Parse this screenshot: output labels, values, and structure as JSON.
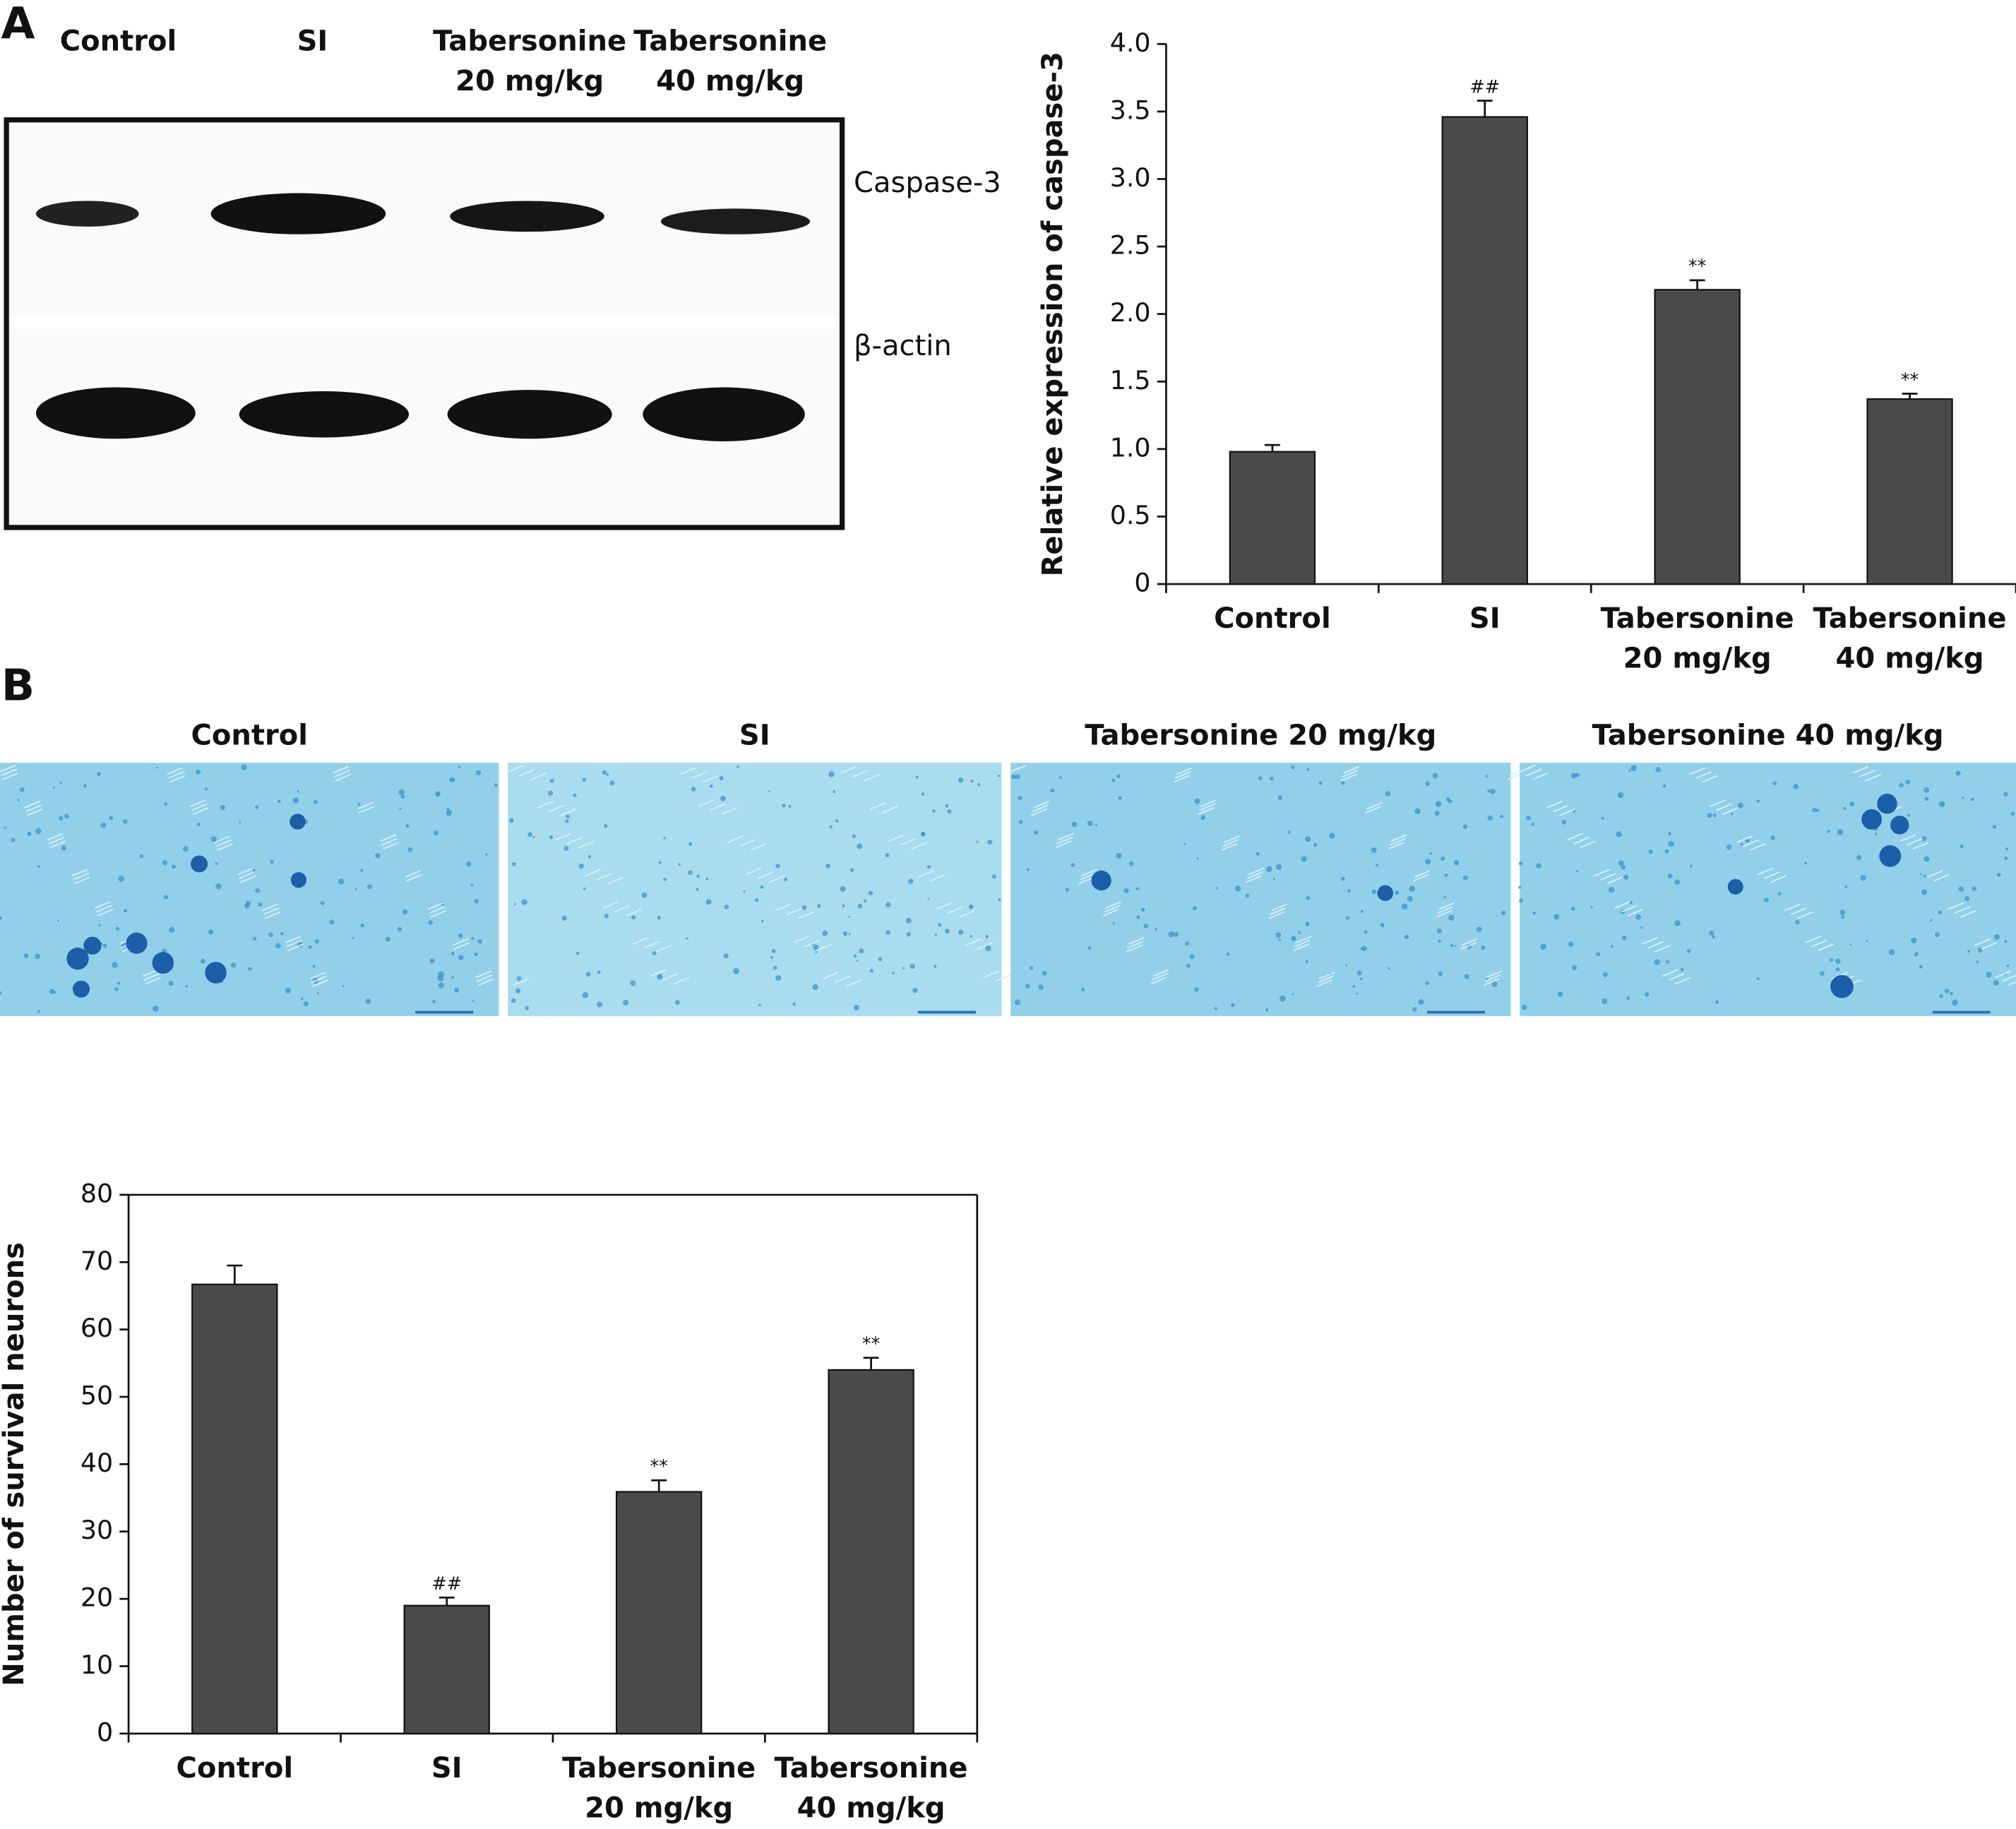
{
  "panel_labels": [
    "A",
    "B"
  ],
  "blot": {
    "lanes": [
      "Control",
      "SI",
      "Tabersonine 20 mg/kg",
      "Tabersonine 40 mg/kg"
    ],
    "proteins": [
      "Caspase-3",
      "β-actin"
    ]
  },
  "micrographs": {
    "titles": [
      "Control",
      "SI",
      "Tabersonine 20 mg/kg",
      "Tabersonine 40 mg/kg"
    ]
  },
  "chart_data": [
    {
      "type": "bar",
      "ylabel": "Relative expression of caspase-3",
      "categories": [
        "Control",
        "SI",
        "Tabersonine 20 mg/kg",
        "Tabersonine 40 mg/kg"
      ],
      "values": [
        0.98,
        3.46,
        2.18,
        1.37
      ],
      "errors": [
        0.05,
        0.12,
        0.07,
        0.04
      ],
      "annotations": [
        null,
        "##",
        "**",
        "**"
      ],
      "color": "#4a4a4a",
      "ylim": [
        0,
        4
      ],
      "yticks": [
        0,
        0.5,
        {
          "value": 1,
          "label": "1.0"
        },
        1.5,
        {
          "value": 2,
          "label": "2.0"
        },
        2.5,
        {
          "value": 3,
          "label": "3.0"
        },
        3.5,
        {
          "value": 4,
          "label": "4.0"
        }
      ]
    },
    {
      "type": "bar",
      "ylabel": "Number of survival neurons",
      "categories": [
        "Control",
        "SI",
        "Tabersonine 20 mg/kg",
        "Tabersonine 40 mg/kg"
      ],
      "values": [
        66.7,
        19,
        35.9,
        54
      ],
      "errors": [
        2.8,
        1.2,
        1.7,
        1.8
      ],
      "annotations": [
        null,
        "##",
        "**",
        "**"
      ],
      "color": "#4a4a4a",
      "ylim": [
        0,
        80
      ],
      "yticks": [
        0,
        10,
        20,
        30,
        40,
        50,
        60,
        70,
        80
      ]
    }
  ]
}
